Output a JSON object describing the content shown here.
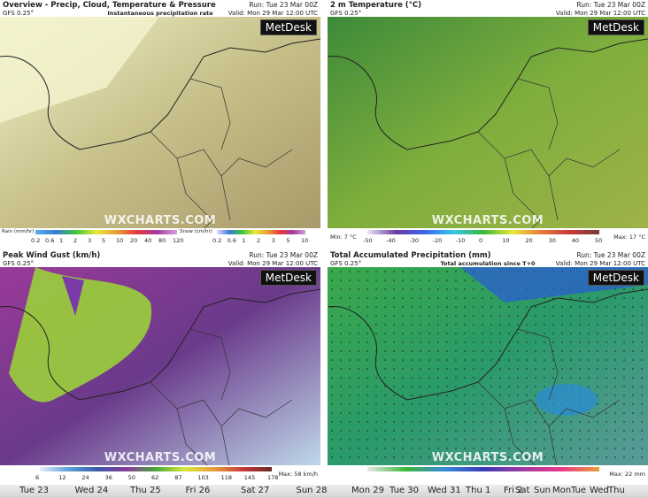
{
  "panels": [
    {
      "title": "Overview - Precip, Cloud, Temperature & Pressure",
      "run": "Run: Tue 23 Mar 00Z",
      "model": "GFS 0.25°",
      "subtitle": "Instantaneous precipitation rate",
      "valid": "Valid: Mon 29 Mar 12:00 UTC",
      "brand": "MetDesk",
      "watermark": "WXCHARTS.COM",
      "legend": {
        "bars": [
          {
            "label": "Rain (mm/hr)",
            "ticks": [
              0.2,
              0.6,
              1,
              2,
              3,
              5,
              10,
              20,
              40,
              80,
              120
            ]
          },
          {
            "label": "Snow (cm/hr)",
            "ticks": [
              0.2,
              0.6,
              1,
              2,
              3,
              5,
              10
            ]
          }
        ]
      }
    },
    {
      "title": "2 m Temperature (°C)",
      "run": "Run: Tue 23 Mar 00Z",
      "model": "GFS 0.25°",
      "valid": "Valid: Mon 29 Mar 12:00 UTC",
      "brand": "MetDesk",
      "watermark": "WXCHARTS.COM",
      "legend": {
        "min": "Min: 7 °C",
        "bars": [
          {
            "ticks": [
              -50,
              -40,
              -30,
              -20,
              -10,
              0,
              10,
              20,
              30,
              40,
              50
            ]
          }
        ],
        "max": "Max: 17 °C"
      }
    },
    {
      "title": "Peak Wind Gust (km/h)",
      "run": "Run: Tue 23 Mar 00Z",
      "model": "GFS 0.25°",
      "valid": "Valid: Mon 29 Mar 12:00 UTC",
      "brand": "MetDesk",
      "watermark": "WXCHARTS.COM",
      "legend": {
        "bars": [
          {
            "ticks": [
              6,
              12,
              24,
              36,
              50,
              62,
              87,
              103,
              118,
              145,
              178
            ]
          }
        ],
        "max": "Max: 58 km/h"
      }
    },
    {
      "title": "Total Accumulated Precipitation (mm)",
      "run": "Run: Tue 23 Mar 00Z",
      "model": "GFS 0.25°",
      "subtitle": "Total accumulation since T+0",
      "valid": "Valid: Mon 29 Mar 12:00 UTC",
      "brand": "MetDesk",
      "watermark": "WXCHARTS.COM",
      "legend": {
        "bars": [
          {
            "ticks": []
          }
        ],
        "max": "Max: 22 mm"
      }
    }
  ],
  "timeline": [
    "Tue 23",
    "Wed 24",
    "Thu 25",
    "Fri 26",
    "Sat 27",
    "Sun 28",
    "Mon 29",
    "Tue 30",
    "Wed 31",
    "Thu 1",
    "Fri 2",
    "Sat",
    "Sun",
    "Mon",
    "Tue",
    "Wed",
    "Thu"
  ]
}
